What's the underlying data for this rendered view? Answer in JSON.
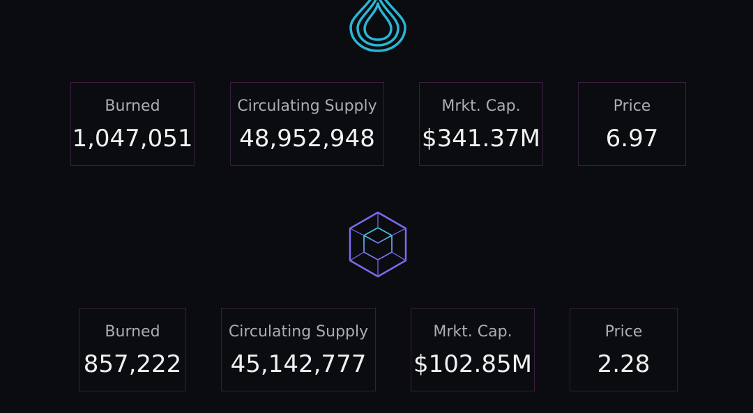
{
  "tokens": [
    {
      "icon": "water-drop-icon",
      "accent": "#29b6d6",
      "stats": [
        {
          "label": "Burned",
          "value": "1,047,051"
        },
        {
          "label": "Circulating Supply",
          "value": "48,952,948"
        },
        {
          "label": "Mrkt. Cap.",
          "value": "$341.37M"
        },
        {
          "label": "Price",
          "value": "6.97"
        }
      ]
    },
    {
      "icon": "cube-icon",
      "accent": "#7b6cf0",
      "stats": [
        {
          "label": "Burned",
          "value": "857,222"
        },
        {
          "label": "Circulating Supply",
          "value": "45,142,777"
        },
        {
          "label": "Mrkt. Cap.",
          "value": "$102.85M"
        },
        {
          "label": "Price",
          "value": "2.28"
        }
      ]
    }
  ],
  "colors": {
    "background": "#0b0c10",
    "card_border": "#3a1d3f",
    "label": "#a9adb5",
    "value": "#f0f1f3"
  }
}
